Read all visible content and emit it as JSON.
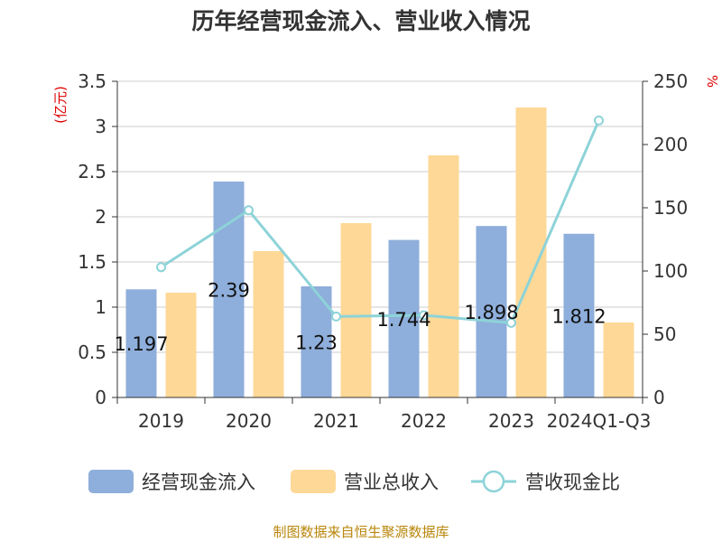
{
  "chart_data": {
    "type": "bar",
    "title": "历年经营现金流入、营业收入情况",
    "categories": [
      "2019",
      "2020",
      "2021",
      "2022",
      "2023",
      "2024Q1-Q3"
    ],
    "series": [
      {
        "name": "经营现金流入",
        "type": "bar",
        "axis": "left",
        "color": "#8eaedb",
        "values": [
          1.197,
          2.39,
          1.23,
          1.744,
          1.898,
          1.812
        ]
      },
      {
        "name": "营业总收入",
        "type": "bar",
        "axis": "left",
        "color": "#fed897",
        "values": [
          1.16,
          1.62,
          1.93,
          2.68,
          3.21,
          0.83
        ]
      },
      {
        "name": "营收现金比",
        "type": "line",
        "axis": "right",
        "color": "#8dd3d8",
        "values": [
          103,
          148,
          64,
          65,
          59,
          219
        ]
      }
    ],
    "data_labels": [
      "1.197",
      "2.39",
      "1.23",
      "1.744",
      "1.898",
      "1.812"
    ],
    "y_left": {
      "unit": "(亿元)",
      "min": 0,
      "max": 3.5,
      "ticks": [
        "0",
        "0.5",
        "1",
        "1.5",
        "2",
        "2.5",
        "3",
        "3.5"
      ]
    },
    "y_right": {
      "unit": "%",
      "min": 0,
      "max": 250,
      "ticks": [
        "0",
        "50",
        "100",
        "150",
        "200",
        "250"
      ]
    },
    "grid": true,
    "legend_position": "bottom"
  },
  "source": "制图数据来自恒生聚源数据库"
}
